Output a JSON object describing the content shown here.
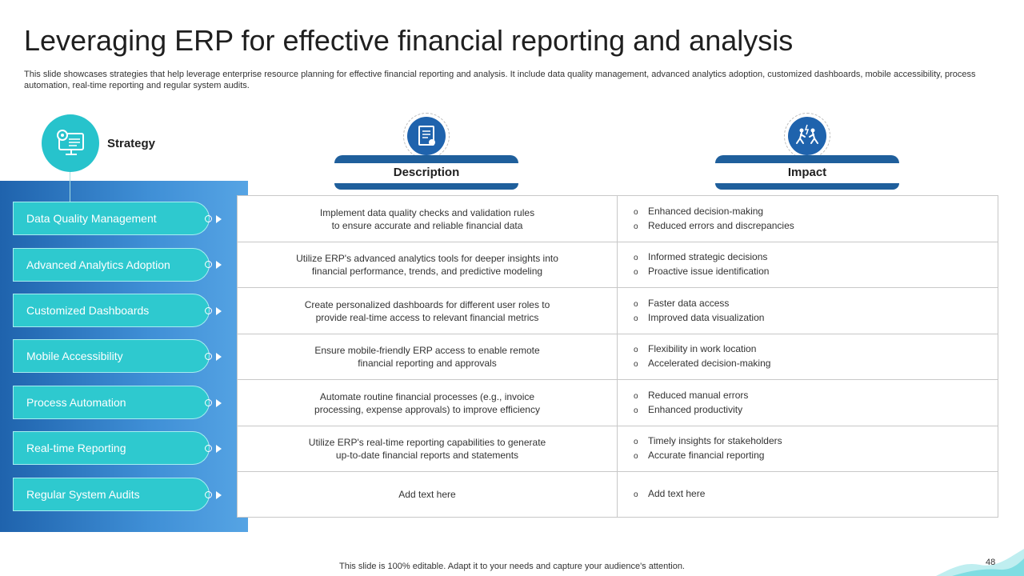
{
  "title": "Leveraging ERP for effective financial reporting and analysis",
  "subtitle": "This slide showcases strategies that help leverage enterprise resource planning for effective financial reporting and analysis. It include data quality management, advanced analytics adoption, customized dashboards, mobile accessibility, process automation, real-time reporting and regular system audits.",
  "strategy_label": "Strategy",
  "headers": {
    "description": "Description",
    "impact": "Impact"
  },
  "rows": [
    {
      "strategy": "Data Quality Management",
      "description": [
        "Implement data quality checks and validation rules",
        "to ensure accurate and reliable financial data"
      ],
      "impact": [
        "Enhanced decision-making",
        "Reduced errors and discrepancies"
      ]
    },
    {
      "strategy": "Advanced Analytics Adoption",
      "description": [
        "Utilize ERP's advanced analytics tools for deeper insights into",
        "financial performance, trends, and predictive modeling"
      ],
      "impact": [
        "Informed strategic decisions",
        "Proactive issue identification"
      ]
    },
    {
      "strategy": "Customized Dashboards",
      "description": [
        "Create personalized dashboards for different user roles to",
        "provide real-time access to relevant financial metrics"
      ],
      "impact": [
        "Faster data access",
        "Improved data visualization"
      ]
    },
    {
      "strategy": "Mobile Accessibility",
      "description": [
        "Ensure mobile-friendly ERP access to enable remote",
        "financial reporting and approvals"
      ],
      "impact": [
        "Flexibility in work location",
        "Accelerated decision-making"
      ]
    },
    {
      "strategy": "Process Automation",
      "description": [
        "Automate routine financial processes (e.g., invoice",
        "processing, expense approvals) to improve efficiency"
      ],
      "impact": [
        "Reduced manual errors",
        "Enhanced productivity"
      ]
    },
    {
      "strategy": "Real-time Reporting",
      "description": [
        "Utilize ERP's real-time reporting capabilities to generate",
        "up-to-date financial reports and statements"
      ],
      "impact": [
        "Timely insights for stakeholders",
        "Accurate financial reporting"
      ]
    },
    {
      "strategy": "Regular System Audits",
      "description": [
        "Add text here"
      ],
      "impact": [
        "Add text here"
      ]
    }
  ],
  "bullet": "o",
  "footer": "This slide is 100% editable. Adapt it to your needs and capture your audience's attention.",
  "page_number": "48",
  "colors": {
    "accent_teal": "#2ec9cf",
    "accent_blue": "#1f63ad",
    "header_bar": "#1f5f9c"
  },
  "icons": {
    "strategy": "monitor-gear-icon",
    "description": "document-icon",
    "impact": "people-walking-icon"
  }
}
